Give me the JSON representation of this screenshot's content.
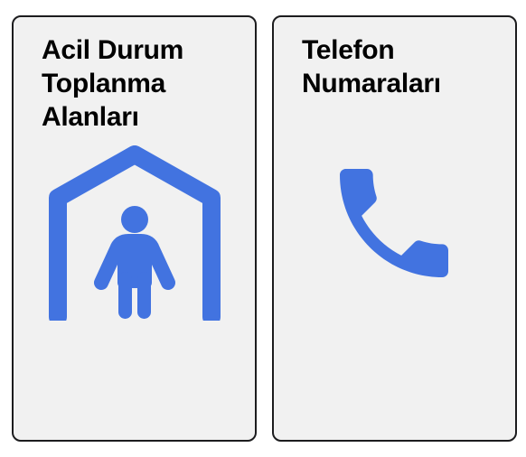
{
  "cards": [
    {
      "id": "assembly-areas",
      "title_lines": [
        "Acil Durum",
        "Toplanma",
        "Alanları"
      ],
      "icon": "shelter-person-icon"
    },
    {
      "id": "phone-numbers",
      "title_lines": [
        "Telefon",
        "Numaraları"
      ],
      "icon": "phone-icon"
    }
  ],
  "colors": {
    "icon": "#4273e0",
    "card_background": "#f1f1f1",
    "card_border": "#1c1c1e",
    "text": "#000000"
  }
}
